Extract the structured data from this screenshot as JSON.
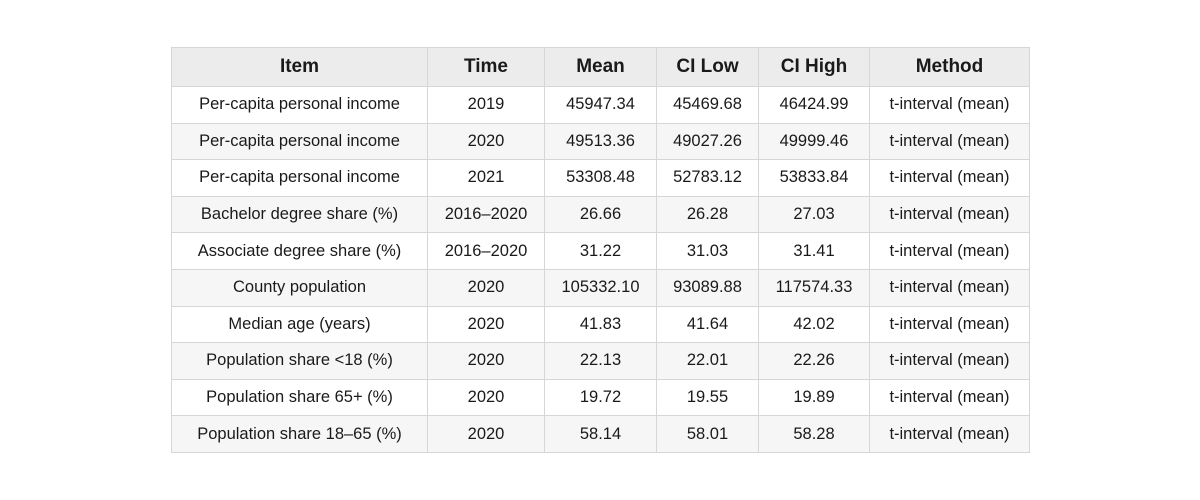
{
  "chart_data": {
    "type": "table",
    "columns": [
      "Item",
      "Time",
      "Mean",
      "CI Low",
      "CI High",
      "Method"
    ],
    "rows": [
      [
        "Per-capita personal income",
        "2019",
        "45947.34",
        "45469.68",
        "46424.99",
        "t-interval (mean)"
      ],
      [
        "Per-capita personal income",
        "2020",
        "49513.36",
        "49027.26",
        "49999.46",
        "t-interval (mean)"
      ],
      [
        "Per-capita personal income",
        "2021",
        "53308.48",
        "52783.12",
        "53833.84",
        "t-interval (mean)"
      ],
      [
        "Bachelor degree share (%)",
        "2016–2020",
        "26.66",
        "26.28",
        "27.03",
        "t-interval (mean)"
      ],
      [
        "Associate degree share (%)",
        "2016–2020",
        "31.22",
        "31.03",
        "31.41",
        "t-interval (mean)"
      ],
      [
        "County population",
        "2020",
        "105332.10",
        "93089.88",
        "117574.33",
        "t-interval (mean)"
      ],
      [
        "Median age (years)",
        "2020",
        "41.83",
        "41.64",
        "42.02",
        "t-interval (mean)"
      ],
      [
        "Population share <18 (%)",
        "2020",
        "22.13",
        "22.01",
        "22.26",
        "t-interval (mean)"
      ],
      [
        "Population share 65+ (%)",
        "2020",
        "19.72",
        "19.55",
        "19.89",
        "t-interval (mean)"
      ],
      [
        "Population share 18–65 (%)",
        "2020",
        "58.14",
        "58.01",
        "58.28",
        "t-interval (mean)"
      ]
    ]
  }
}
